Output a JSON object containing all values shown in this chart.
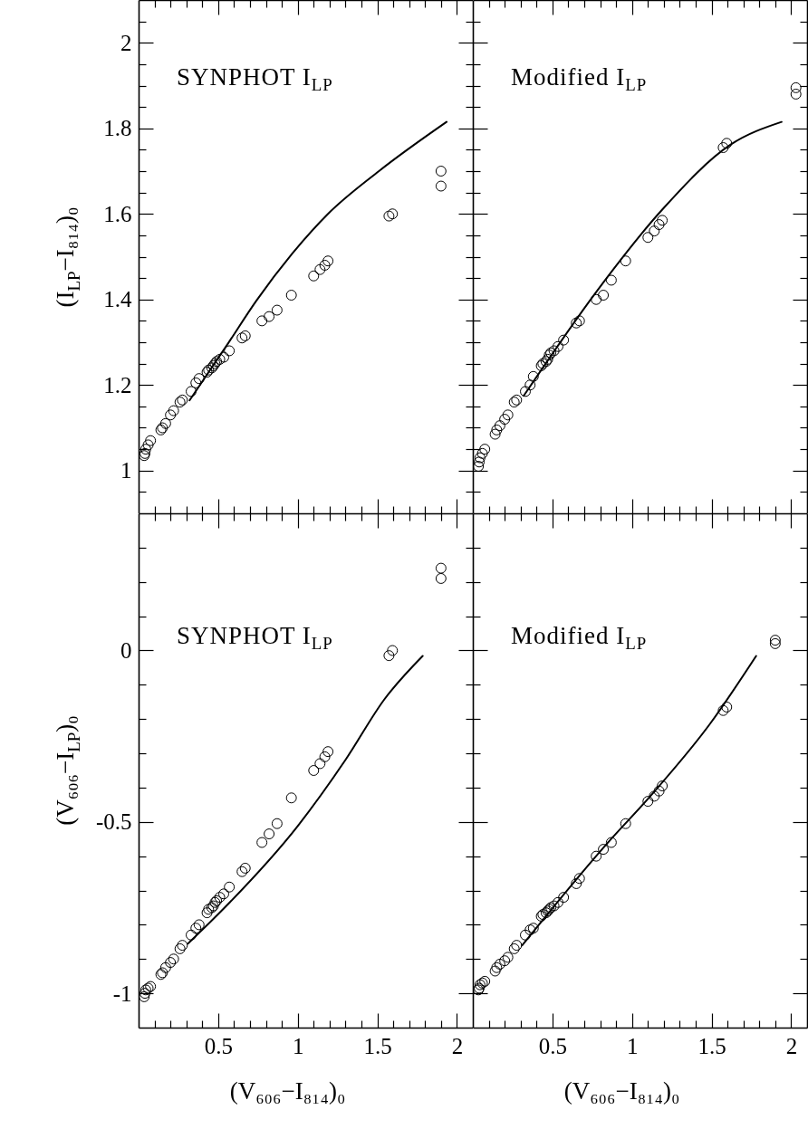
{
  "chart_data": [
    {
      "type": "scatter",
      "ylabel": "(I$_{LP}$−I₈₁₄)₀",
      "annotations": [
        "SYNPHOT I$_{LP}$"
      ],
      "tick_labels": "y",
      "xlim": [
        0,
        2.1
      ],
      "ylim": [
        0.9,
        2.1
      ],
      "xticks": [
        {
          "value": 0.1,
          "label": null
        },
        {
          "value": 0.2,
          "label": null
        },
        {
          "value": 0.3,
          "label": null
        },
        {
          "value": 0.4,
          "label": null
        },
        0.5,
        {
          "value": 0.6,
          "label": null
        },
        {
          "value": 0.7,
          "label": null
        },
        {
          "value": 0.8,
          "label": null
        },
        {
          "value": 0.9,
          "label": null
        },
        1,
        {
          "value": 1.1,
          "label": null
        },
        {
          "value": 1.2,
          "label": null
        },
        {
          "value": 1.3,
          "label": null
        },
        {
          "value": 1.4,
          "label": null
        },
        1.5,
        {
          "value": 1.6,
          "label": null
        },
        {
          "value": 1.7,
          "label": null
        },
        {
          "value": 1.8,
          "label": null
        },
        {
          "value": 1.9,
          "label": null
        },
        2
      ],
      "yticks": [
        {
          "value": 0.95,
          "label": null
        },
        1,
        {
          "value": 1.05,
          "label": null
        },
        {
          "value": 1.1,
          "label": null
        },
        {
          "value": 1.15,
          "label": null
        },
        1.2,
        {
          "value": 1.25,
          "label": null
        },
        {
          "value": 1.3,
          "label": null
        },
        {
          "value": 1.35,
          "label": null
        },
        1.4,
        {
          "value": 1.45,
          "label": null
        },
        {
          "value": 1.5,
          "label": null
        },
        {
          "value": 1.55,
          "label": null
        },
        1.6,
        {
          "value": 1.65,
          "label": null
        },
        {
          "value": 1.7,
          "label": null
        },
        {
          "value": 1.75,
          "label": null
        },
        1.8,
        {
          "value": 1.85,
          "label": null
        },
        {
          "value": 1.9,
          "label": null
        },
        {
          "value": 1.95,
          "label": null
        },
        2,
        {
          "value": 2.05,
          "label": null
        }
      ],
      "series": [
        {
          "marker": "circle",
          "color": "#000000",
          "x": [
            0.035,
            0.04,
            0.045,
            0.06,
            0.075,
            0.14,
            0.15,
            0.17,
            0.2,
            0.22,
            0.26,
            0.275,
            0.33,
            0.36,
            0.38,
            0.43,
            0.44,
            0.46,
            0.47,
            0.48,
            0.49,
            0.51,
            0.535,
            0.57,
            0.65,
            0.67,
            0.775,
            0.82,
            0.87,
            0.96,
            1.1,
            1.14,
            1.17,
            1.19,
            1.573,
            1.595,
            1.9,
            1.9
          ],
          "values": [
            1.035,
            1.04,
            1.05,
            1.06,
            1.07,
            1.095,
            1.1,
            1.11,
            1.13,
            1.14,
            1.16,
            1.165,
            1.185,
            1.205,
            1.215,
            1.23,
            1.235,
            1.24,
            1.245,
            1.25,
            1.255,
            1.26,
            1.265,
            1.28,
            1.31,
            1.315,
            1.35,
            1.36,
            1.375,
            1.41,
            1.455,
            1.47,
            1.48,
            1.49,
            1.595,
            1.6,
            1.7,
            1.665
          ]
        },
        {
          "type": "line",
          "color": "#000000",
          "x": [
            0.32,
            0.56,
            0.74,
            0.965,
            1.19,
            1.51,
            1.935
          ],
          "values": [
            1.164,
            1.296,
            1.397,
            1.507,
            1.6,
            1.7,
            1.815
          ]
        }
      ]
    },
    {
      "type": "scatter",
      "annotations": [
        "Modified I$_{LP}$"
      ],
      "tick_labels": false,
      "xlim": [
        0,
        2.1
      ],
      "ylim": [
        0.9,
        2.1
      ],
      "xticks": [
        {
          "value": 0.1,
          "label": null
        },
        {
          "value": 0.2,
          "label": null
        },
        {
          "value": 0.3,
          "label": null
        },
        {
          "value": 0.4,
          "label": null
        },
        0.5,
        {
          "value": 0.6,
          "label": null
        },
        {
          "value": 0.7,
          "label": null
        },
        {
          "value": 0.8,
          "label": null
        },
        {
          "value": 0.9,
          "label": null
        },
        1,
        {
          "value": 1.1,
          "label": null
        },
        {
          "value": 1.2,
          "label": null
        },
        {
          "value": 1.3,
          "label": null
        },
        {
          "value": 1.4,
          "label": null
        },
        1.5,
        {
          "value": 1.6,
          "label": null
        },
        {
          "value": 1.7,
          "label": null
        },
        {
          "value": 1.8,
          "label": null
        },
        {
          "value": 1.9,
          "label": null
        },
        2
      ],
      "yticks": [
        {
          "value": 0.95,
          "label": null
        },
        1,
        {
          "value": 1.05,
          "label": null
        },
        {
          "value": 1.1,
          "label": null
        },
        {
          "value": 1.15,
          "label": null
        },
        1.2,
        {
          "value": 1.25,
          "label": null
        },
        {
          "value": 1.3,
          "label": null
        },
        {
          "value": 1.35,
          "label": null
        },
        1.4,
        {
          "value": 1.45,
          "label": null
        },
        {
          "value": 1.5,
          "label": null
        },
        {
          "value": 1.55,
          "label": null
        },
        1.6,
        {
          "value": 1.65,
          "label": null
        },
        {
          "value": 1.7,
          "label": null
        },
        {
          "value": 1.75,
          "label": null
        },
        1.8,
        {
          "value": 1.85,
          "label": null
        },
        {
          "value": 1.9,
          "label": null
        },
        {
          "value": 1.95,
          "label": null
        },
        2,
        {
          "value": 2.05,
          "label": null
        }
      ],
      "series": [
        {
          "marker": "circle",
          "color": "#000000",
          "x": [
            0.035,
            0.04,
            0.045,
            0.06,
            0.075,
            0.14,
            0.15,
            0.17,
            0.2,
            0.22,
            0.26,
            0.275,
            0.33,
            0.36,
            0.38,
            0.43,
            0.44,
            0.46,
            0.47,
            0.48,
            0.49,
            0.51,
            0.535,
            0.57,
            0.65,
            0.67,
            0.775,
            0.82,
            0.87,
            0.96,
            1.1,
            1.14,
            1.17,
            1.19,
            1.573,
            1.595,
            2.03,
            2.03
          ],
          "values": [
            1.01,
            1.02,
            1.03,
            1.04,
            1.05,
            1.085,
            1.095,
            1.105,
            1.12,
            1.13,
            1.16,
            1.165,
            1.185,
            1.2,
            1.22,
            1.245,
            1.25,
            1.255,
            1.26,
            1.27,
            1.275,
            1.28,
            1.29,
            1.305,
            1.345,
            1.35,
            1.4,
            1.41,
            1.445,
            1.49,
            1.545,
            1.56,
            1.575,
            1.585,
            1.755,
            1.765,
            1.895,
            1.88
          ]
        },
        {
          "type": "line",
          "color": "#000000",
          "x": [
            0.32,
            0.78,
            1.19,
            1.62,
            1.94
          ],
          "values": [
            1.175,
            1.42,
            1.61,
            1.762,
            1.815
          ]
        }
      ]
    },
    {
      "type": "scatter",
      "xlabel": "(V₆₀₆−I₈₁₄)₀",
      "ylabel": "(V₆₀₆−I$_{LP}$)₀",
      "annotations": [
        "SYNPHOT I$_{LP}$"
      ],
      "xlim": [
        0,
        2.1
      ],
      "ylim": [
        -1.1,
        0.4
      ],
      "xticks": [
        {
          "value": 0.1,
          "label": null
        },
        {
          "value": 0.2,
          "label": null
        },
        {
          "value": 0.3,
          "label": null
        },
        {
          "value": 0.4,
          "label": null
        },
        0.5,
        {
          "value": 0.6,
          "label": null
        },
        {
          "value": 0.7,
          "label": null
        },
        {
          "value": 0.8,
          "label": null
        },
        {
          "value": 0.9,
          "label": null
        },
        1,
        {
          "value": 1.1,
          "label": null
        },
        {
          "value": 1.2,
          "label": null
        },
        {
          "value": 1.3,
          "label": null
        },
        {
          "value": 1.4,
          "label": null
        },
        1.5,
        {
          "value": 1.6,
          "label": null
        },
        {
          "value": 1.7,
          "label": null
        },
        {
          "value": 1.8,
          "label": null
        },
        {
          "value": 1.9,
          "label": null
        },
        2
      ],
      "yticks": [
        -1,
        {
          "value": -0.9,
          "label": null
        },
        {
          "value": -0.8,
          "label": null
        },
        {
          "value": -0.7,
          "label": null
        },
        {
          "value": -0.6,
          "label": null
        },
        -0.5,
        {
          "value": -0.4,
          "label": null
        },
        {
          "value": -0.3,
          "label": null
        },
        {
          "value": -0.2,
          "label": null
        },
        {
          "value": -0.1,
          "label": null
        },
        0,
        {
          "value": 0.1,
          "label": null
        },
        {
          "value": 0.2,
          "label": null
        },
        {
          "value": 0.3,
          "label": null
        }
      ],
      "series": [
        {
          "marker": "circle",
          "color": "#000000",
          "x": [
            0.035,
            0.04,
            0.045,
            0.06,
            0.075,
            0.14,
            0.15,
            0.17,
            0.2,
            0.22,
            0.26,
            0.275,
            0.33,
            0.36,
            0.38,
            0.43,
            0.44,
            0.46,
            0.47,
            0.48,
            0.49,
            0.51,
            0.535,
            0.57,
            0.65,
            0.67,
            0.775,
            0.82,
            0.87,
            0.96,
            1.1,
            1.14,
            1.17,
            1.19,
            1.573,
            1.595,
            1.9,
            1.9
          ],
          "values": [
            -1.01,
            -1.0,
            -0.99,
            -0.985,
            -0.98,
            -0.945,
            -0.94,
            -0.925,
            -0.91,
            -0.9,
            -0.87,
            -0.86,
            -0.83,
            -0.81,
            -0.8,
            -0.765,
            -0.755,
            -0.75,
            -0.745,
            -0.735,
            -0.73,
            -0.72,
            -0.71,
            -0.69,
            -0.645,
            -0.635,
            -0.56,
            -0.535,
            -0.505,
            -0.43,
            -0.35,
            -0.33,
            -0.31,
            -0.295,
            -0.015,
            0.0,
            0.24,
            0.21
          ]
        },
        {
          "type": "line",
          "color": "#000000",
          "x": [
            0.31,
            0.56,
            1.0,
            1.3,
            1.545,
            1.785
          ],
          "values": [
            -0.855,
            -0.741,
            -0.512,
            -0.319,
            -0.142,
            -0.016
          ]
        }
      ]
    },
    {
      "type": "scatter",
      "xlabel": "(V₆₀₆−I₈₁₄)₀",
      "annotations": [
        "Modified I$_{LP}$"
      ],
      "tick_labels": "x",
      "xlim": [
        0,
        2.1
      ],
      "ylim": [
        -1.1,
        0.4
      ],
      "xticks": [
        {
          "value": 0.1,
          "label": null
        },
        {
          "value": 0.2,
          "label": null
        },
        {
          "value": 0.3,
          "label": null
        },
        {
          "value": 0.4,
          "label": null
        },
        0.5,
        {
          "value": 0.6,
          "label": null
        },
        {
          "value": 0.7,
          "label": null
        },
        {
          "value": 0.8,
          "label": null
        },
        {
          "value": 0.9,
          "label": null
        },
        1,
        {
          "value": 1.1,
          "label": null
        },
        {
          "value": 1.2,
          "label": null
        },
        {
          "value": 1.3,
          "label": null
        },
        {
          "value": 1.4,
          "label": null
        },
        1.5,
        {
          "value": 1.6,
          "label": null
        },
        {
          "value": 1.7,
          "label": null
        },
        {
          "value": 1.8,
          "label": null
        },
        {
          "value": 1.9,
          "label": null
        },
        2
      ],
      "yticks": [
        -1,
        {
          "value": -0.9,
          "label": null
        },
        {
          "value": -0.8,
          "label": null
        },
        {
          "value": -0.7,
          "label": null
        },
        {
          "value": -0.6,
          "label": null
        },
        -0.5,
        {
          "value": -0.4,
          "label": null
        },
        {
          "value": -0.3,
          "label": null
        },
        {
          "value": -0.2,
          "label": null
        },
        {
          "value": -0.1,
          "label": null
        },
        0,
        {
          "value": 0.1,
          "label": null
        },
        {
          "value": 0.2,
          "label": null
        },
        {
          "value": 0.3,
          "label": null
        }
      ],
      "series": [
        {
          "marker": "circle",
          "color": "#000000",
          "x": [
            0.035,
            0.04,
            0.045,
            0.06,
            0.075,
            0.14,
            0.15,
            0.17,
            0.2,
            0.22,
            0.26,
            0.275,
            0.33,
            0.36,
            0.38,
            0.43,
            0.44,
            0.46,
            0.47,
            0.48,
            0.49,
            0.51,
            0.535,
            0.57,
            0.65,
            0.67,
            0.775,
            0.82,
            0.87,
            0.96,
            1.1,
            1.14,
            1.17,
            1.19,
            1.573,
            1.595,
            1.9,
            1.9
          ],
          "values": [
            -0.99,
            -0.985,
            -0.975,
            -0.97,
            -0.965,
            -0.935,
            -0.925,
            -0.915,
            -0.905,
            -0.895,
            -0.87,
            -0.86,
            -0.83,
            -0.815,
            -0.81,
            -0.775,
            -0.77,
            -0.765,
            -0.76,
            -0.755,
            -0.75,
            -0.745,
            -0.735,
            -0.72,
            -0.68,
            -0.665,
            -0.6,
            -0.58,
            -0.56,
            -0.505,
            -0.44,
            -0.425,
            -0.41,
            -0.395,
            -0.175,
            -0.165,
            0.03,
            0.02
          ]
        },
        {
          "type": "line",
          "color": "#000000",
          "x": [
            0.31,
            0.84,
            1.115,
            1.49,
            1.78
          ],
          "values": [
            -0.86,
            -0.565,
            -0.425,
            -0.214,
            -0.016
          ]
        }
      ]
    }
  ]
}
